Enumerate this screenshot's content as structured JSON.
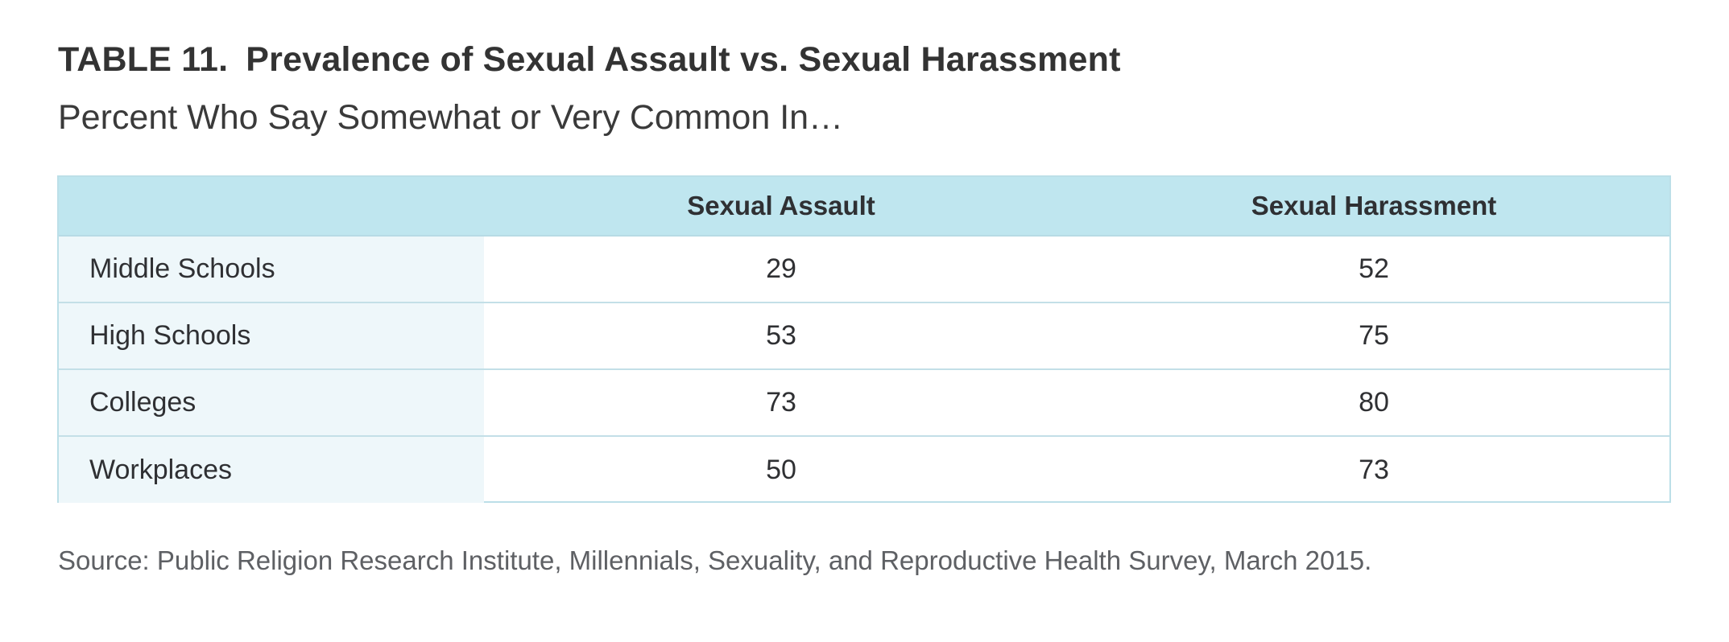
{
  "title": {
    "number": "TABLE 11.",
    "text": "Prevalence of Sexual Assault vs. Sexual Harassment"
  },
  "subtitle": "Percent Who Say Somewhat or Very Common In…",
  "table": {
    "headers": [
      "",
      "Sexual Assault",
      "Sexual Harassment"
    ],
    "rows": [
      {
        "label": "Middle Schools",
        "values": [
          "29",
          "52"
        ]
      },
      {
        "label": "High Schools",
        "values": [
          "53",
          "75"
        ]
      },
      {
        "label": "Colleges",
        "values": [
          "73",
          "80"
        ]
      },
      {
        "label": "Workplaces",
        "values": [
          "50",
          "73"
        ]
      }
    ]
  },
  "source": "Source: Public Religion Research Institute, Millennials, Sexuality, and Reproductive Health Survey, March 2015.",
  "colors": {
    "header_bg": "#bfe6ef",
    "label_col_bg": "#eef7fa",
    "border": "#bcdfe8"
  }
}
